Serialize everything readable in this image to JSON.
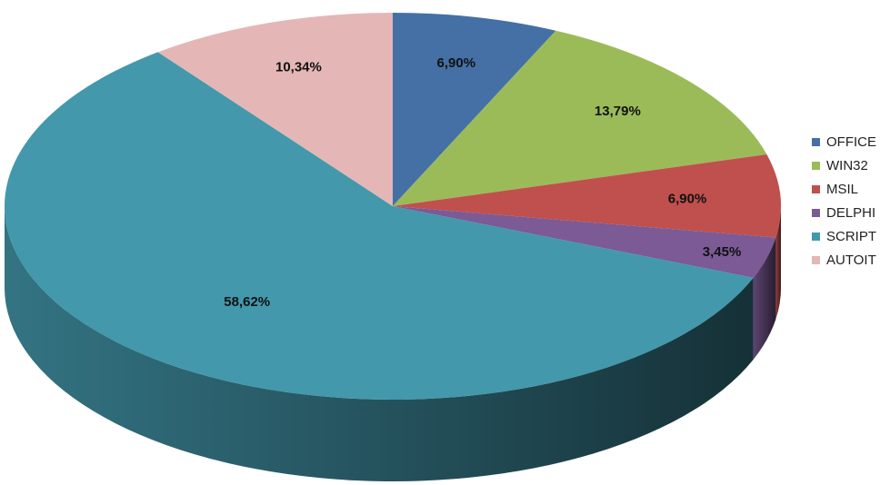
{
  "chart_data": {
    "type": "pie",
    "style": "3d-exploded-free",
    "series": [
      {
        "name": "OFFICE",
        "value": 6.9,
        "label": "6,90%",
        "color": "#4570A5"
      },
      {
        "name": "WIN32",
        "value": 13.79,
        "label": "13,79%",
        "color": "#9BBB59"
      },
      {
        "name": "MSIL",
        "value": 6.9,
        "label": "6,90%",
        "color": "#C0504D"
      },
      {
        "name": "DELPHI",
        "value": 3.45,
        "label": "3,45%",
        "color": "#7B5A96"
      },
      {
        "name": "SCRIPT",
        "value": 58.62,
        "label": "58,62%",
        "color": "#4398AC"
      },
      {
        "name": "AUTOIT",
        "value": 10.34,
        "label": "10,34%",
        "color": "#E4B7B6"
      }
    ],
    "legend_position": "right",
    "title": ""
  }
}
